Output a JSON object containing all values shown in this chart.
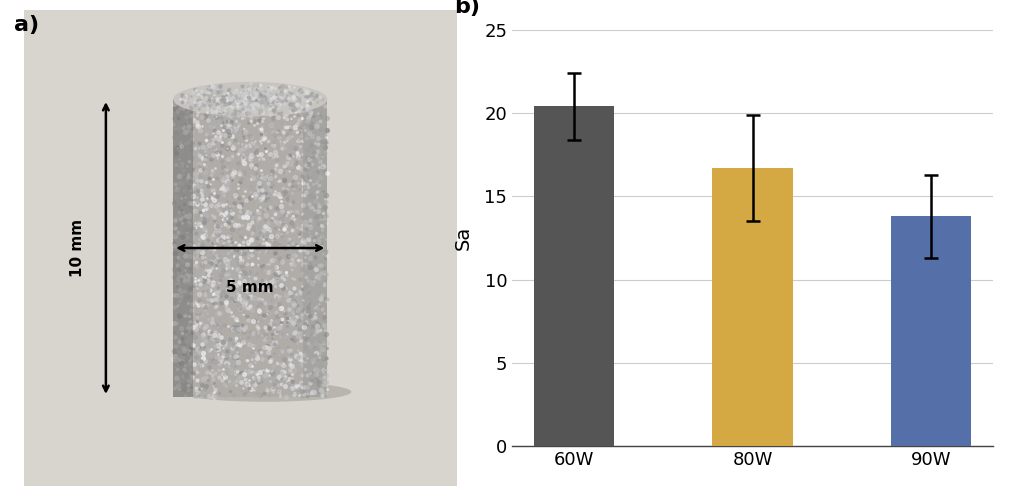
{
  "categories": [
    "60W",
    "80W",
    "90W"
  ],
  "values": [
    20.4,
    16.7,
    13.8
  ],
  "errors": [
    2.0,
    3.2,
    2.5
  ],
  "bar_colors": [
    "#555555",
    "#D4A843",
    "#5570A8"
  ],
  "ylabel": "Sa",
  "ylim": [
    0,
    25
  ],
  "yticks": [
    0,
    5,
    10,
    15,
    20,
    25
  ],
  "bar_width": 0.45,
  "label_a": "a)",
  "label_b": "b)",
  "title_fontsize": 16,
  "axis_fontsize": 14,
  "tick_fontsize": 13,
  "error_capsize": 5,
  "error_linewidth": 1.8,
  "error_color": "black",
  "grid_color": "#cccccc",
  "background_color": "#ffffff",
  "img_bg_color": "#d8d4ce",
  "cylinder_color_top": "#c0bdb8",
  "cylinder_color_body": "#a8a5a0",
  "cylinder_body_dark": "#888580"
}
